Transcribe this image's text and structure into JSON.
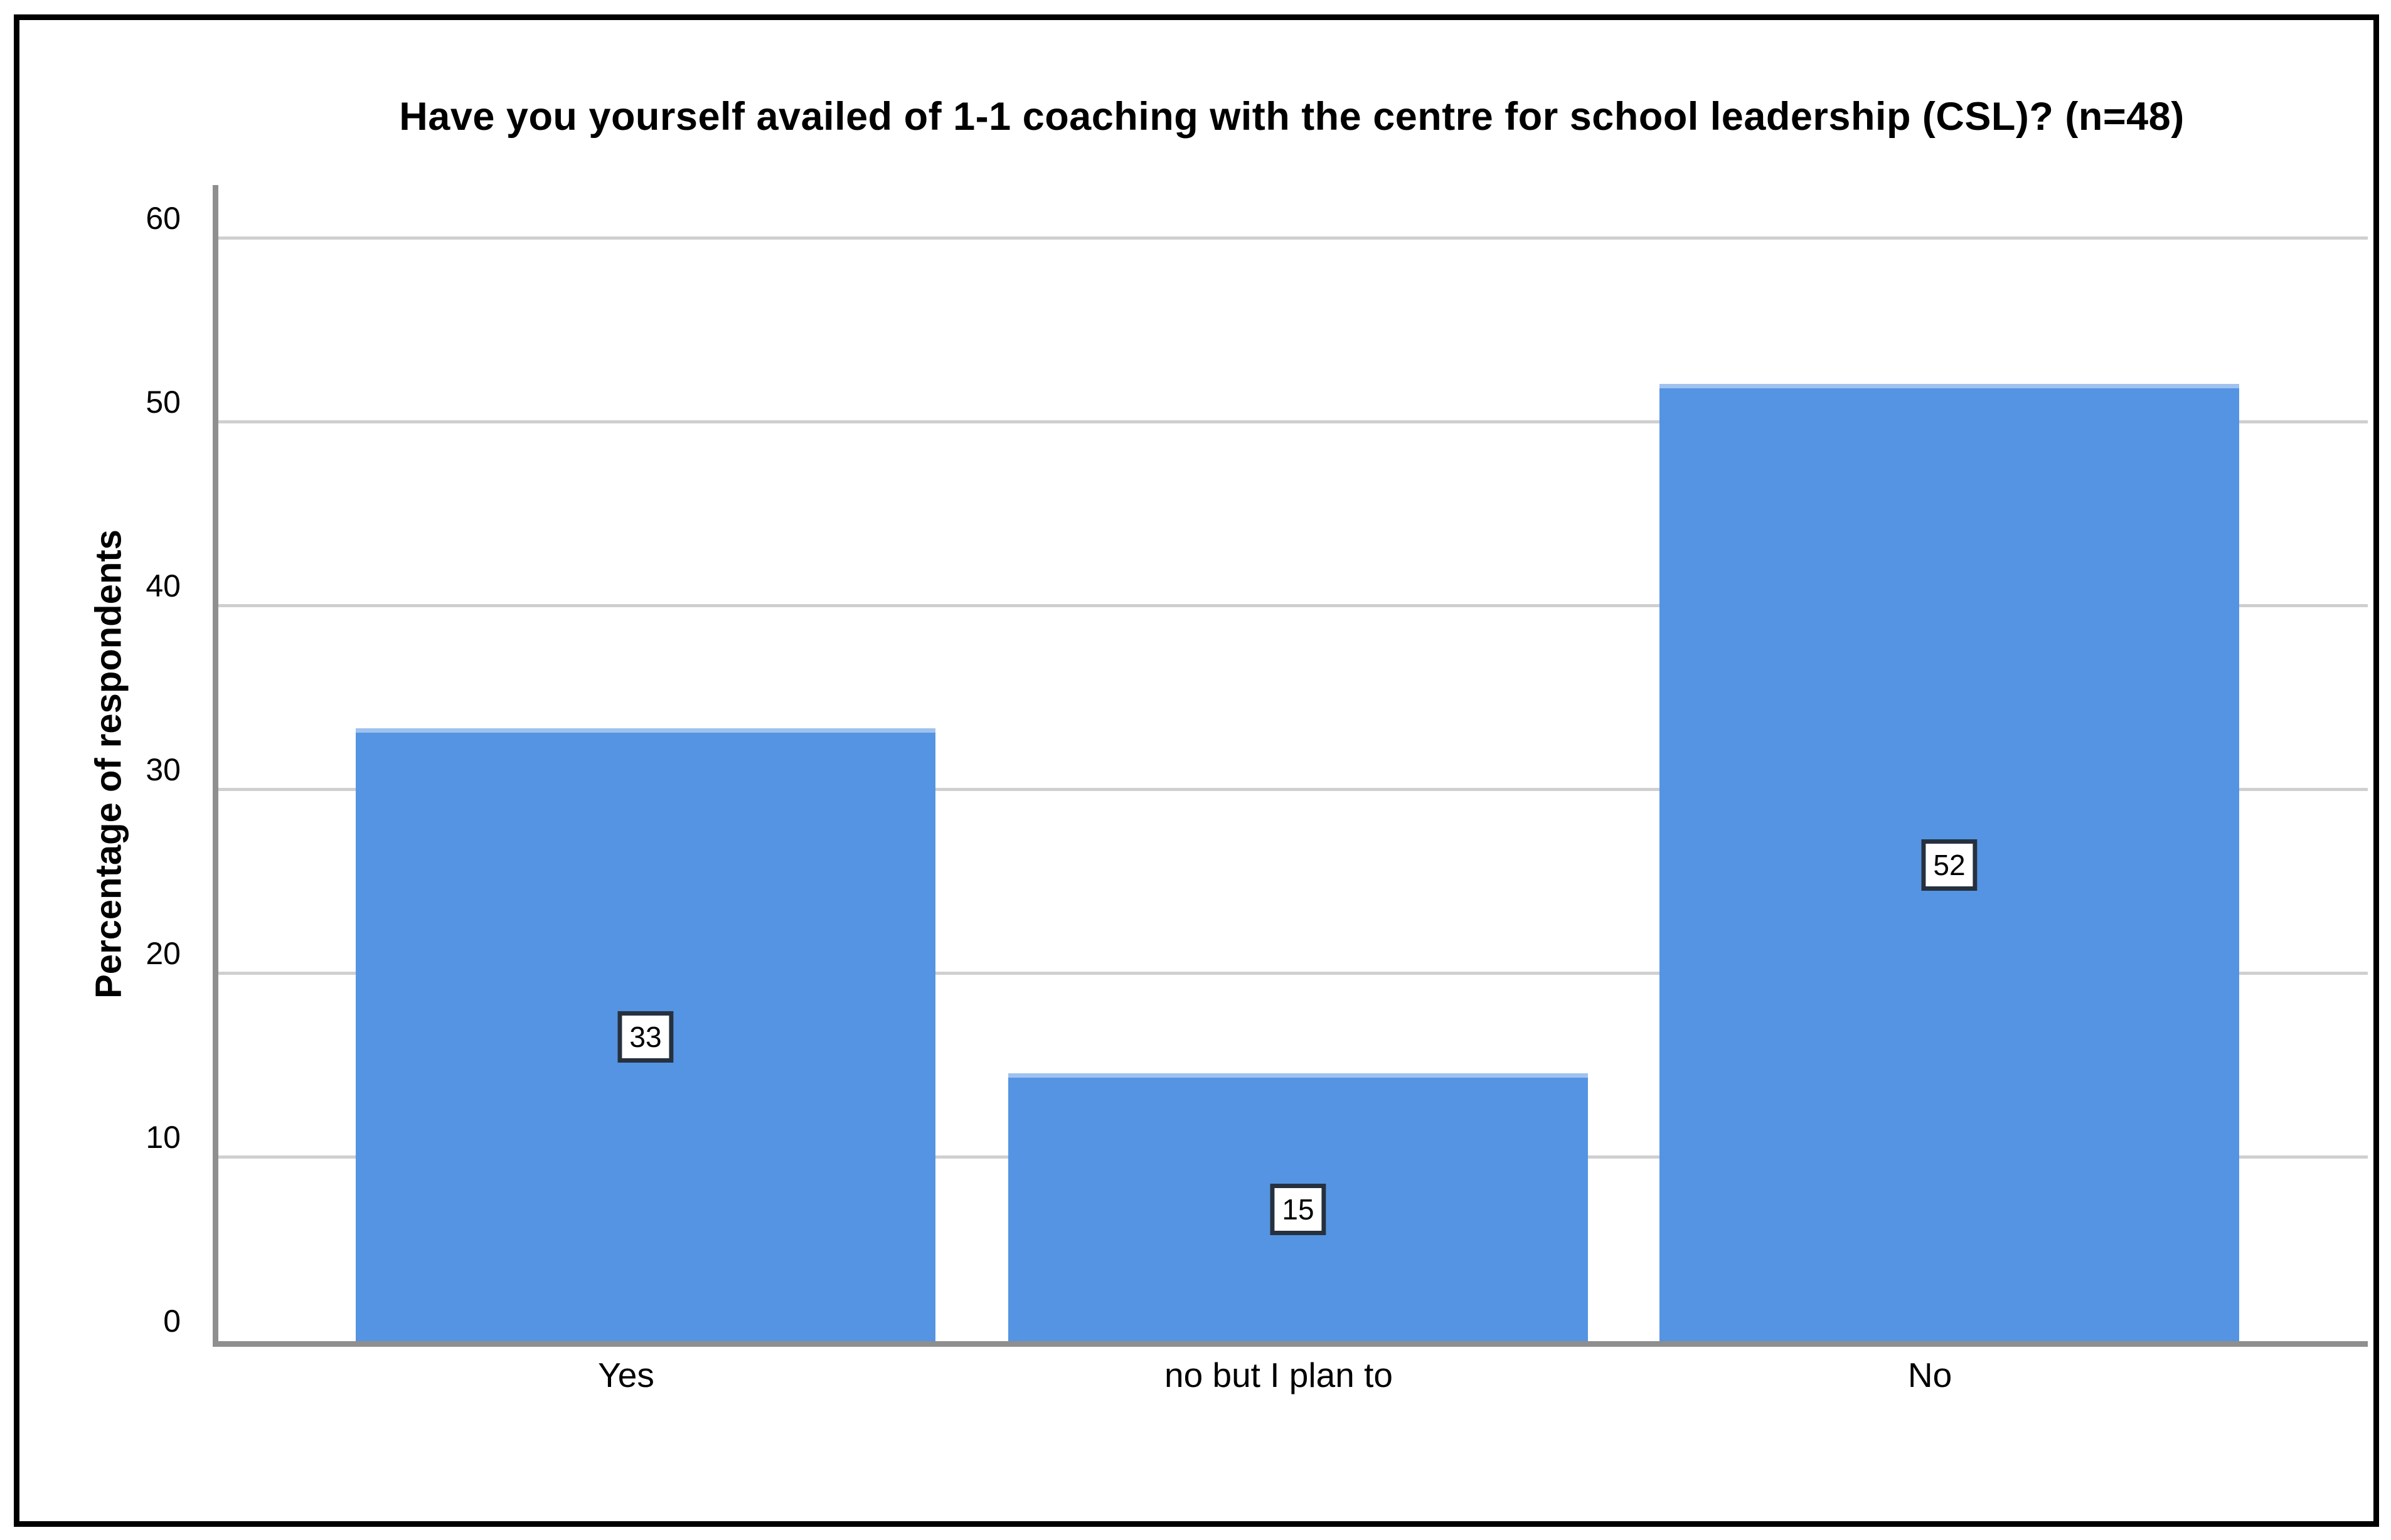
{
  "figure": {
    "background": "#ffffff",
    "border_color": "#000000"
  },
  "chart_data": {
    "type": "bar",
    "title": "Have you yourself availed of 1-1 coaching with the centre for school leadership (CSL)? (n=48)",
    "ylabel": "Percentage of respondents",
    "xlabel": "",
    "categories": [
      "Yes",
      "no but I plan to",
      "No"
    ],
    "values": [
      33,
      15,
      52
    ],
    "values_precise": [
      33.33,
      14.58,
      52.08
    ],
    "bar_labels": [
      "33",
      "15",
      "52"
    ],
    "n": 48,
    "yticks": [
      0,
      10,
      20,
      30,
      40,
      50,
      60
    ],
    "ylim": [
      0,
      63
    ],
    "grid": "horizontal gridlines at each y tick",
    "legend": "none",
    "bar_color": "#5494e2",
    "bar_top_edge_color": "#9fc2ef",
    "gridline_color": "#cfcfcf",
    "axis_line_color": "#8f8f8f",
    "label_box": {
      "bg": "#ffffff",
      "border": "#26313f",
      "text": "#000000"
    }
  }
}
